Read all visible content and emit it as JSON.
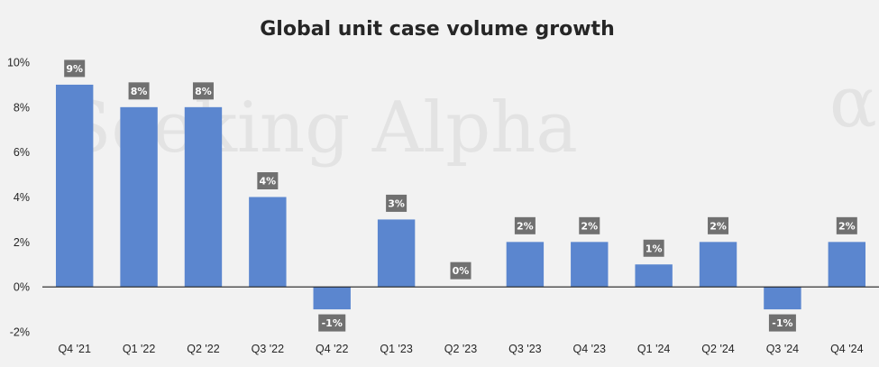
{
  "chart_data": {
    "type": "bar",
    "title": "Global unit case volume growth",
    "categories": [
      "Q4 '21",
      "Q1 '22",
      "Q2 '22",
      "Q3 '22",
      "Q4 '22",
      "Q1 '23",
      "Q2 '23",
      "Q3 '23",
      "Q4 '23",
      "Q1 '24",
      "Q2 '24",
      "Q3 '24",
      "Q4 '24"
    ],
    "values": [
      9,
      8,
      8,
      4,
      -1,
      3,
      0,
      2,
      2,
      1,
      2,
      -1,
      2
    ],
    "data_labels": [
      "9%",
      "8%",
      "8%",
      "4%",
      "-1%",
      "3%",
      "0%",
      "2%",
      "2%",
      "1%",
      "2%",
      "-1%",
      "2%"
    ],
    "yticks": [
      10,
      8,
      6,
      4,
      2,
      0,
      -2
    ],
    "ytick_labels": [
      "10%",
      "8%",
      "6%",
      "4%",
      "2%",
      "0%",
      "-2%"
    ],
    "ylim": [
      -2,
      10
    ],
    "xlabel": "",
    "ylabel": "",
    "grid": false,
    "colors": {
      "bar": "#5b86cf",
      "label_bg": "#707070",
      "axis": "#1f1f1f"
    }
  },
  "watermark": {
    "text": "Seeking Alpha",
    "symbol": "α"
  }
}
